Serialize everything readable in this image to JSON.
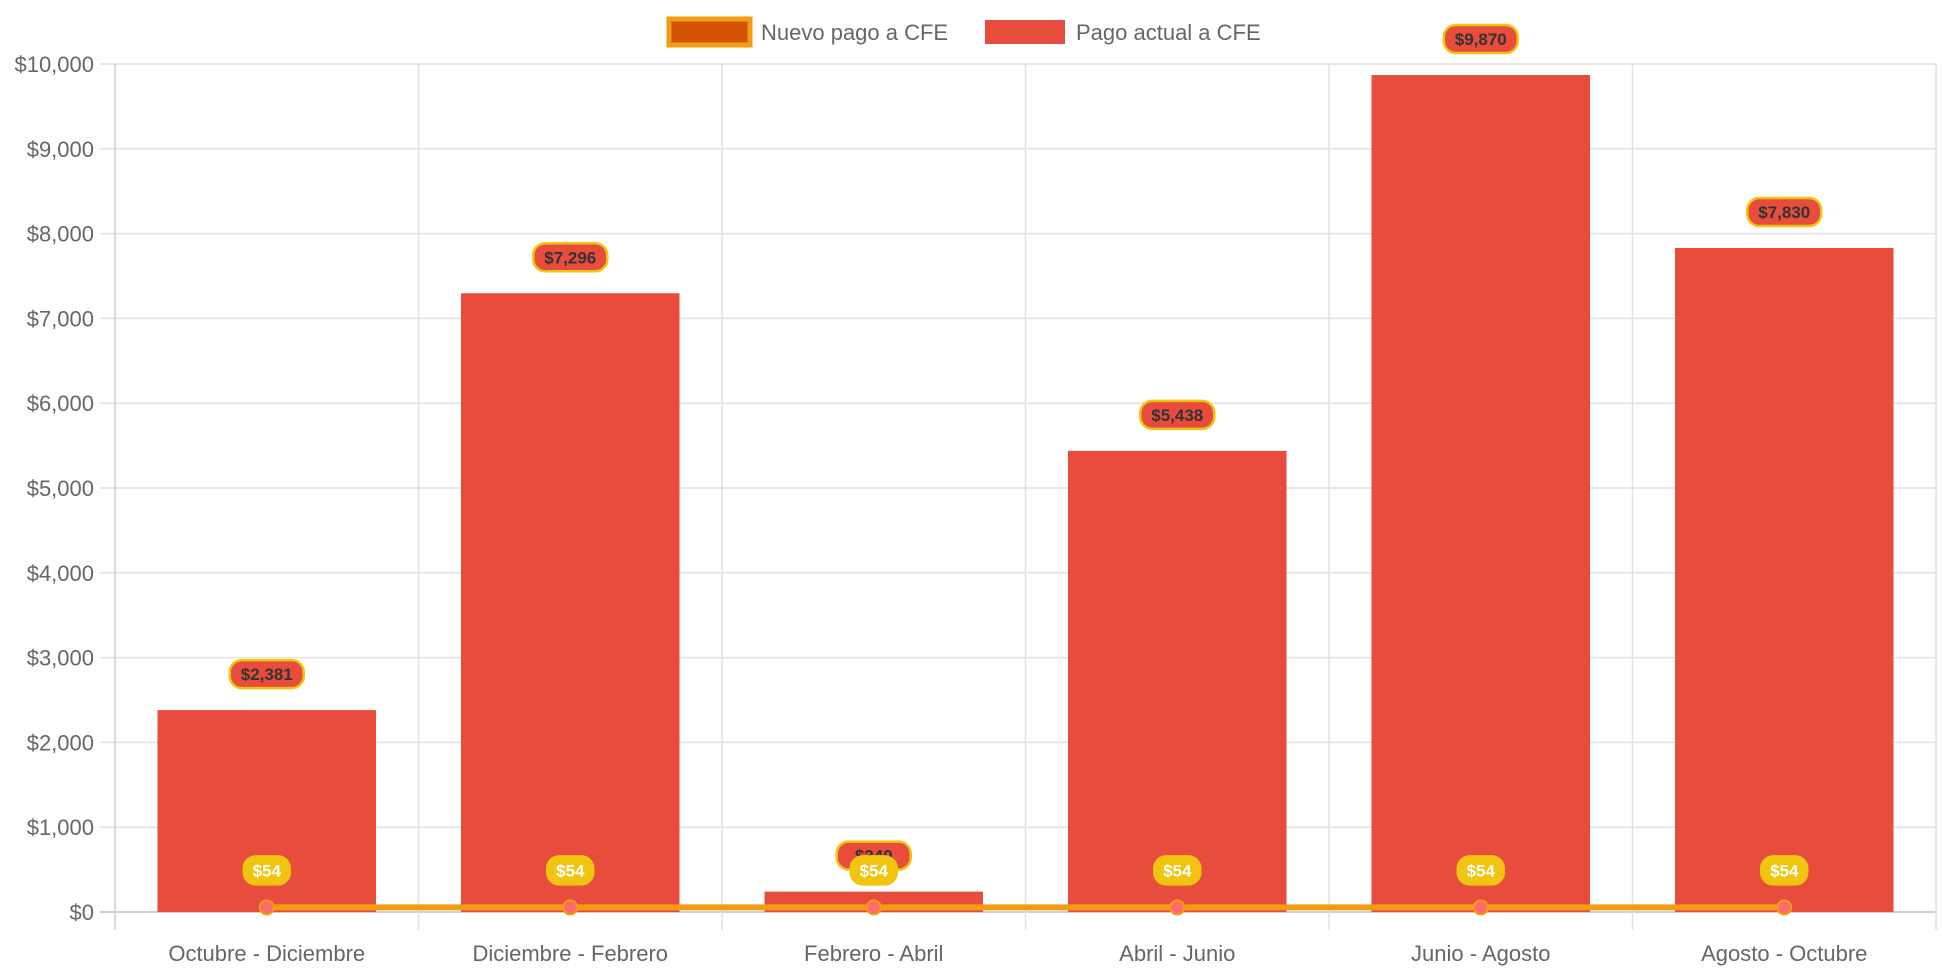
{
  "chart_data": {
    "type": "bar",
    "title": "",
    "xlabel": "",
    "ylabel": "",
    "ylim": [
      0,
      10000
    ],
    "y_step": 1000,
    "y_tick_labels": [
      "$0",
      "$1,000",
      "$2,000",
      "$3,000",
      "$4,000",
      "$5,000",
      "$6,000",
      "$7,000",
      "$8,000",
      "$9,000",
      "$10,000"
    ],
    "grid": true,
    "legend_position": "top",
    "categories": [
      "Octubre - Diciembre",
      "Diciembre - Febrero",
      "Febrero - Abril",
      "Abril - Junio",
      "Junio - Agosto",
      "Agosto - Octubre"
    ],
    "series": [
      {
        "name": "Nuevo pago a CFE",
        "type": "line",
        "values": [
          54,
          54,
          54,
          54,
          54,
          54
        ],
        "labels": [
          "$54",
          "$54",
          "$54",
          "$54",
          "$54",
          "$54"
        ],
        "color": "#F39C12",
        "legend_fill": "#D35400",
        "point_color": "#FF6B6B",
        "label_bg": "#F1C40F",
        "label_text_color": "#FFFFFF"
      },
      {
        "name": "Pago actual a CFE",
        "type": "bar",
        "values": [
          2381,
          7296,
          240,
          5438,
          9870,
          7830
        ],
        "labels": [
          "$2,381",
          "$7,296",
          "$240",
          "$5,438",
          "$9,870",
          "$7,830"
        ],
        "color": "#E74C3C",
        "label_bg": "#E74C3C",
        "label_border": "#F1C40F",
        "label_text_color": "#333333"
      }
    ]
  }
}
